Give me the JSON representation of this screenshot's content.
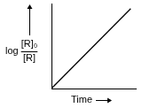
{
  "chart_data": {
    "type": "line",
    "x_label": "Time",
    "y_label": {
      "prefix": "log",
      "numerator": "[R]₀",
      "denominator": "[R]"
    },
    "x": [
      0,
      9.4
    ],
    "values": [
      0,
      9.4
    ],
    "color": "#000000",
    "xlim": [
      0,
      10
    ],
    "ylim": [
      0,
      10
    ],
    "grid": false,
    "tick_labels": false
  }
}
